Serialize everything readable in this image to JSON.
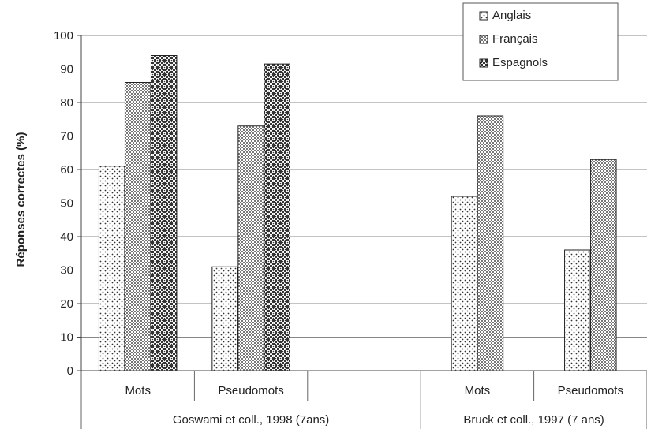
{
  "chart_data": {
    "type": "bar",
    "title": "",
    "ylabel": "Réponses correctes (%)",
    "ylim": [
      0,
      100
    ],
    "yticks": [
      0,
      10,
      20,
      30,
      40,
      50,
      60,
      70,
      80,
      90,
      100
    ],
    "grid": true,
    "legend_position": "top-right",
    "groups": [
      {
        "label": "Goswami et coll., 1998 (7ans)",
        "categories": [
          "Mots",
          "Pseudomots"
        ]
      },
      {
        "label": "Bruck et coll., 1997 (7 ans)",
        "categories": [
          "Mots",
          "Pseudomots"
        ]
      }
    ],
    "categories": [
      "Mots",
      "Pseudomots",
      "",
      "Mots",
      "Pseudomots"
    ],
    "series": [
      {
        "name": "Anglais",
        "values": [
          61,
          31,
          null,
          52,
          36
        ],
        "pattern": "dots-sparse"
      },
      {
        "name": "Français",
        "values": [
          86,
          73,
          null,
          76,
          63
        ],
        "pattern": "dots-dense"
      },
      {
        "name": "Espagnols",
        "values": [
          94,
          91.5,
          null,
          null,
          null
        ],
        "pattern": "checker"
      }
    ]
  }
}
